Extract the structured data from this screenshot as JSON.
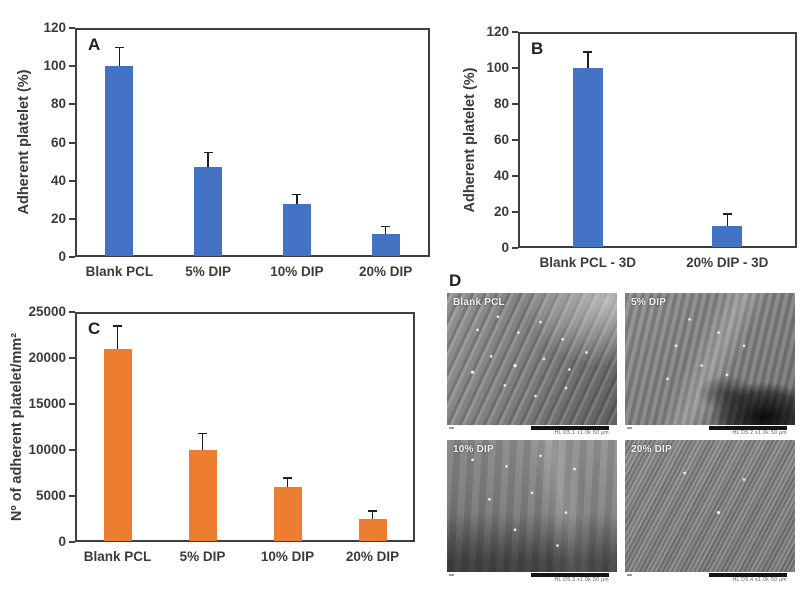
{
  "colors": {
    "bar_blue": "#4472C4",
    "bar_orange": "#ED7D31",
    "axis": "#3f3f3f",
    "text": "#3b3b3b"
  },
  "chart_data": [
    {
      "type": "bar",
      "panel_label": "A",
      "xlabel": "",
      "ylabel": "Adherent platelet (%)",
      "categories": [
        "Blank PCL",
        "5% DIP",
        "10% DIP",
        "20% DIP"
      ],
      "values": [
        100,
        47,
        28,
        12
      ],
      "errors": [
        10,
        8,
        5,
        4
      ],
      "ylim": [
        0,
        120
      ],
      "ytick_step": 20,
      "bar_color": "#4472C4",
      "grid": false,
      "legend": "none"
    },
    {
      "type": "bar",
      "panel_label": "B",
      "xlabel": "",
      "ylabel": "Adherent platelet (%)",
      "categories": [
        "Blank PCL - 3D",
        "20% DIP - 3D"
      ],
      "values": [
        100,
        12
      ],
      "errors": [
        9,
        7
      ],
      "ylim": [
        0,
        120
      ],
      "ytick_step": 20,
      "bar_color": "#4472C4",
      "grid": false,
      "legend": "none"
    },
    {
      "type": "bar",
      "panel_label": "C",
      "xlabel": "",
      "ylabel": "Nº of adherent platelet/mm²",
      "categories": [
        "Blank PCL",
        "5% DIP",
        "10% DIP",
        "20% DIP"
      ],
      "values": [
        21000,
        10000,
        6000,
        2500
      ],
      "errors": [
        2500,
        1800,
        1000,
        900
      ],
      "ylim": [
        0,
        25000
      ],
      "ytick_step": 5000,
      "bar_color": "#ED7D31",
      "grid": false,
      "legend": "none"
    }
  ],
  "sem_panel": {
    "label": "D",
    "images": [
      {
        "label": "Blank PCL",
        "scalebar_text": "HL D5.1 x1.0k 50 µm"
      },
      {
        "label": "5% DIP",
        "scalebar_text": "HL D5.2 x1.0k 50 µm"
      },
      {
        "label": "10% DIP",
        "scalebar_text": "HL D5.3 x1.0k 50 µm"
      },
      {
        "label": "20% DIP",
        "scalebar_text": "HL D5.4 x1.0k 50 µm"
      }
    ]
  }
}
